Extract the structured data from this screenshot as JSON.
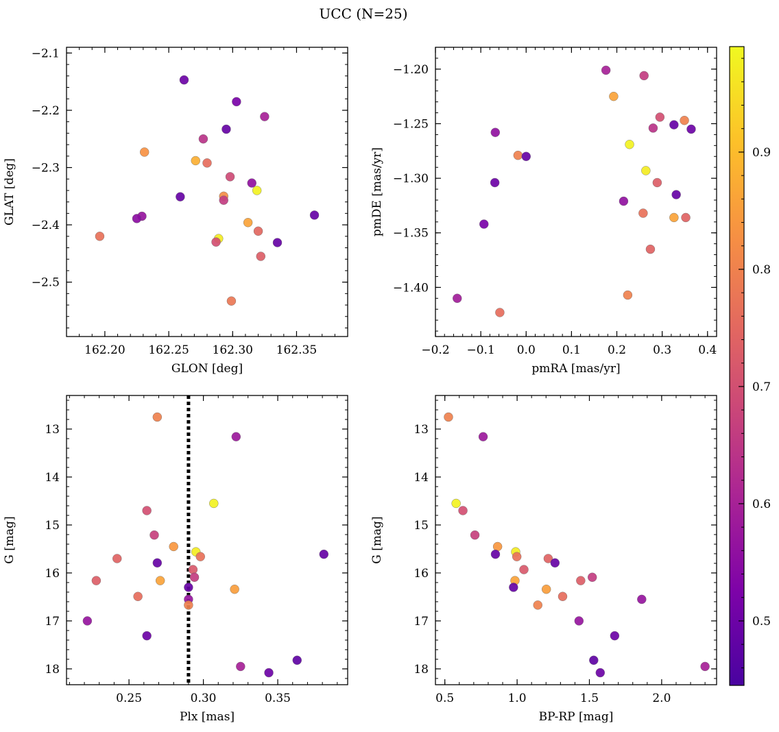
{
  "figure": {
    "title": "UCC (N=25)"
  },
  "colorbar": {
    "colormap": "plasma",
    "range": [
      0.445,
      0.99
    ],
    "ticks": [
      0.5,
      0.6,
      0.7,
      0.8,
      0.9
    ],
    "tick_labels": [
      "0.5",
      "0.6",
      "0.7",
      "0.8",
      "0.9"
    ]
  },
  "chart_data": [
    {
      "type": "scatter",
      "xlabel": "GLON [deg]",
      "ylabel": "GLAT [deg]",
      "xlim": [
        162.17,
        162.39
      ],
      "ylim": [
        -2.595,
        -2.09
      ],
      "y_inverted": false,
      "xticks": [
        162.2,
        162.25,
        162.3,
        162.35
      ],
      "xtick_labels": [
        "162.20",
        "162.25",
        "162.30",
        "162.35"
      ],
      "yticks": [
        -2.1,
        -2.2,
        -2.3,
        -2.4,
        -2.5
      ],
      "ytick_labels": [
        "−2.1",
        "−2.2",
        "−2.3",
        "−2.4",
        "−2.5"
      ],
      "points": [
        {
          "x": 162.262,
          "y": -2.147,
          "c": 0.5
        },
        {
          "x": 162.303,
          "y": -2.185,
          "c": 0.52
        },
        {
          "x": 162.325,
          "y": -2.211,
          "c": 0.6
        },
        {
          "x": 162.295,
          "y": -2.233,
          "c": 0.49
        },
        {
          "x": 162.277,
          "y": -2.25,
          "c": 0.64
        },
        {
          "x": 162.231,
          "y": -2.273,
          "c": 0.83
        },
        {
          "x": 162.271,
          "y": -2.288,
          "c": 0.88
        },
        {
          "x": 162.28,
          "y": -2.292,
          "c": 0.76
        },
        {
          "x": 162.298,
          "y": -2.316,
          "c": 0.69
        },
        {
          "x": 162.315,
          "y": -2.327,
          "c": 0.56
        },
        {
          "x": 162.319,
          "y": -2.34,
          "c": 0.98
        },
        {
          "x": 162.293,
          "y": -2.35,
          "c": 0.82
        },
        {
          "x": 162.259,
          "y": -2.351,
          "c": 0.49
        },
        {
          "x": 162.293,
          "y": -2.357,
          "c": 0.66
        },
        {
          "x": 162.229,
          "y": -2.385,
          "c": 0.57
        },
        {
          "x": 162.225,
          "y": -2.389,
          "c": 0.55
        },
        {
          "x": 162.364,
          "y": -2.383,
          "c": 0.49
        },
        {
          "x": 162.312,
          "y": -2.396,
          "c": 0.86
        },
        {
          "x": 162.196,
          "y": -2.42,
          "c": 0.77
        },
        {
          "x": 162.32,
          "y": -2.411,
          "c": 0.75
        },
        {
          "x": 162.289,
          "y": -2.424,
          "c": 0.97
        },
        {
          "x": 162.287,
          "y": -2.43,
          "c": 0.7
        },
        {
          "x": 162.335,
          "y": -2.431,
          "c": 0.49
        },
        {
          "x": 162.322,
          "y": -2.455,
          "c": 0.73
        },
        {
          "x": 162.299,
          "y": -2.533,
          "c": 0.78
        }
      ]
    },
    {
      "type": "scatter",
      "xlabel": "pmRA [mas/yr]",
      "ylabel": "pmDE [mas/yr]",
      "xlim": [
        -0.2,
        0.42
      ],
      "ylim": [
        -1.445,
        -1.18
      ],
      "y_inverted": false,
      "xticks": [
        -0.2,
        -0.1,
        0.0,
        0.1,
        0.2,
        0.3,
        0.4
      ],
      "xtick_labels": [
        "−0.2",
        "−0.1",
        "0.0",
        "0.1",
        "0.2",
        "0.3",
        "0.4"
      ],
      "yticks": [
        -1.2,
        -1.25,
        -1.3,
        -1.35,
        -1.4
      ],
      "ytick_labels": [
        "−1.20",
        "−1.25",
        "−1.30",
        "−1.35",
        "−1.40"
      ],
      "points": [
        {
          "x": 0.176,
          "y": -1.201,
          "c": 0.6
        },
        {
          "x": 0.26,
          "y": -1.206,
          "c": 0.66
        },
        {
          "x": 0.193,
          "y": -1.225,
          "c": 0.86
        },
        {
          "x": 0.295,
          "y": -1.244,
          "c": 0.7
        },
        {
          "x": 0.349,
          "y": -1.247,
          "c": 0.8
        },
        {
          "x": 0.326,
          "y": -1.251,
          "c": 0.49
        },
        {
          "x": 0.28,
          "y": -1.254,
          "c": 0.64
        },
        {
          "x": 0.364,
          "y": -1.255,
          "c": 0.5
        },
        {
          "x": -0.068,
          "y": -1.258,
          "c": 0.56
        },
        {
          "x": 0.228,
          "y": -1.269,
          "c": 0.98
        },
        {
          "x": -0.018,
          "y": -1.279,
          "c": 0.8
        },
        {
          "x": 0.0,
          "y": -1.28,
          "c": 0.49
        },
        {
          "x": 0.264,
          "y": -1.293,
          "c": 0.97
        },
        {
          "x": -0.069,
          "y": -1.304,
          "c": 0.5
        },
        {
          "x": 0.289,
          "y": -1.304,
          "c": 0.73
        },
        {
          "x": 0.331,
          "y": -1.315,
          "c": 0.49
        },
        {
          "x": 0.215,
          "y": -1.321,
          "c": 0.56
        },
        {
          "x": 0.258,
          "y": -1.332,
          "c": 0.77
        },
        {
          "x": 0.326,
          "y": -1.336,
          "c": 0.86
        },
        {
          "x": 0.352,
          "y": -1.336,
          "c": 0.74
        },
        {
          "x": -0.093,
          "y": -1.342,
          "c": 0.52
        },
        {
          "x": 0.274,
          "y": -1.365,
          "c": 0.74
        },
        {
          "x": 0.224,
          "y": -1.407,
          "c": 0.8
        },
        {
          "x": -0.152,
          "y": -1.41,
          "c": 0.59
        },
        {
          "x": -0.058,
          "y": -1.423,
          "c": 0.76
        }
      ]
    },
    {
      "type": "scatter",
      "xlabel": "Plx [mas]",
      "ylabel": "G [mag]",
      "xlim": [
        0.208,
        0.397
      ],
      "ylim": [
        12.3,
        18.33
      ],
      "y_inverted": true,
      "xticks": [
        0.25,
        0.3,
        0.35
      ],
      "xtick_labels": [
        "0.25",
        "0.30",
        "0.35"
      ],
      "yticks": [
        13,
        14,
        15,
        16,
        17,
        18
      ],
      "ytick_labels": [
        "13",
        "14",
        "15",
        "16",
        "17",
        "18"
      ],
      "vline": {
        "x": 0.29,
        "style": "dotted",
        "color": "#000000"
      },
      "points": [
        {
          "x": 0.269,
          "y": 12.75,
          "c": 0.8
        },
        {
          "x": 0.322,
          "y": 13.16,
          "c": 0.58
        },
        {
          "x": 0.307,
          "y": 14.55,
          "c": 0.98
        },
        {
          "x": 0.262,
          "y": 14.7,
          "c": 0.7
        },
        {
          "x": 0.267,
          "y": 15.21,
          "c": 0.67
        },
        {
          "x": 0.28,
          "y": 15.45,
          "c": 0.84
        },
        {
          "x": 0.295,
          "y": 15.56,
          "c": 0.97
        },
        {
          "x": 0.381,
          "y": 15.61,
          "c": 0.49
        },
        {
          "x": 0.298,
          "y": 15.66,
          "c": 0.77
        },
        {
          "x": 0.242,
          "y": 15.7,
          "c": 0.74
        },
        {
          "x": 0.269,
          "y": 15.79,
          "c": 0.49
        },
        {
          "x": 0.293,
          "y": 15.93,
          "c": 0.72
        },
        {
          "x": 0.294,
          "y": 16.09,
          "c": 0.66
        },
        {
          "x": 0.228,
          "y": 16.16,
          "c": 0.73
        },
        {
          "x": 0.271,
          "y": 16.16,
          "c": 0.86
        },
        {
          "x": 0.29,
          "y": 16.3,
          "c": 0.49
        },
        {
          "x": 0.321,
          "y": 16.34,
          "c": 0.85
        },
        {
          "x": 0.256,
          "y": 16.49,
          "c": 0.76
        },
        {
          "x": 0.29,
          "y": 16.55,
          "c": 0.57
        },
        {
          "x": 0.29,
          "y": 16.67,
          "c": 0.8
        },
        {
          "x": 0.222,
          "y": 17.0,
          "c": 0.57
        },
        {
          "x": 0.262,
          "y": 17.31,
          "c": 0.5
        },
        {
          "x": 0.363,
          "y": 17.82,
          "c": 0.48
        },
        {
          "x": 0.325,
          "y": 17.95,
          "c": 0.6
        },
        {
          "x": 0.344,
          "y": 18.08,
          "c": 0.5
        }
      ]
    },
    {
      "type": "scatter",
      "xlabel": "BP-RP [mag]",
      "ylabel": "G [mag]",
      "xlim": [
        0.435,
        2.38
      ],
      "ylim": [
        12.3,
        18.33
      ],
      "y_inverted": true,
      "xticks": [
        0.5,
        1.0,
        1.5,
        2.0
      ],
      "xtick_labels": [
        "0.5",
        "1.0",
        "1.5",
        "2.0"
      ],
      "yticks": [
        13,
        14,
        15,
        16,
        17,
        18
      ],
      "ytick_labels": [
        "13",
        "14",
        "15",
        "16",
        "17",
        "18"
      ],
      "points": [
        {
          "x": 0.525,
          "y": 12.75,
          "c": 0.8
        },
        {
          "x": 0.765,
          "y": 13.16,
          "c": 0.58
        },
        {
          "x": 0.578,
          "y": 14.55,
          "c": 0.98
        },
        {
          "x": 0.625,
          "y": 14.7,
          "c": 0.7
        },
        {
          "x": 0.708,
          "y": 15.21,
          "c": 0.67
        },
        {
          "x": 0.865,
          "y": 15.45,
          "c": 0.84
        },
        {
          "x": 0.99,
          "y": 15.56,
          "c": 0.97
        },
        {
          "x": 0.85,
          "y": 15.61,
          "c": 0.49
        },
        {
          "x": 0.998,
          "y": 15.66,
          "c": 0.77
        },
        {
          "x": 1.215,
          "y": 15.7,
          "c": 0.74
        },
        {
          "x": 1.262,
          "y": 15.79,
          "c": 0.49
        },
        {
          "x": 1.047,
          "y": 15.93,
          "c": 0.72
        },
        {
          "x": 1.52,
          "y": 16.09,
          "c": 0.66
        },
        {
          "x": 1.44,
          "y": 16.16,
          "c": 0.73
        },
        {
          "x": 0.985,
          "y": 16.16,
          "c": 0.86
        },
        {
          "x": 0.975,
          "y": 16.3,
          "c": 0.49
        },
        {
          "x": 1.202,
          "y": 16.34,
          "c": 0.85
        },
        {
          "x": 1.315,
          "y": 16.49,
          "c": 0.76
        },
        {
          "x": 1.862,
          "y": 16.55,
          "c": 0.57
        },
        {
          "x": 1.143,
          "y": 16.67,
          "c": 0.8
        },
        {
          "x": 1.428,
          "y": 17.0,
          "c": 0.57
        },
        {
          "x": 1.675,
          "y": 17.31,
          "c": 0.5
        },
        {
          "x": 1.53,
          "y": 17.82,
          "c": 0.48
        },
        {
          "x": 2.3,
          "y": 17.95,
          "c": 0.6
        },
        {
          "x": 1.575,
          "y": 18.08,
          "c": 0.5
        }
      ]
    }
  ]
}
